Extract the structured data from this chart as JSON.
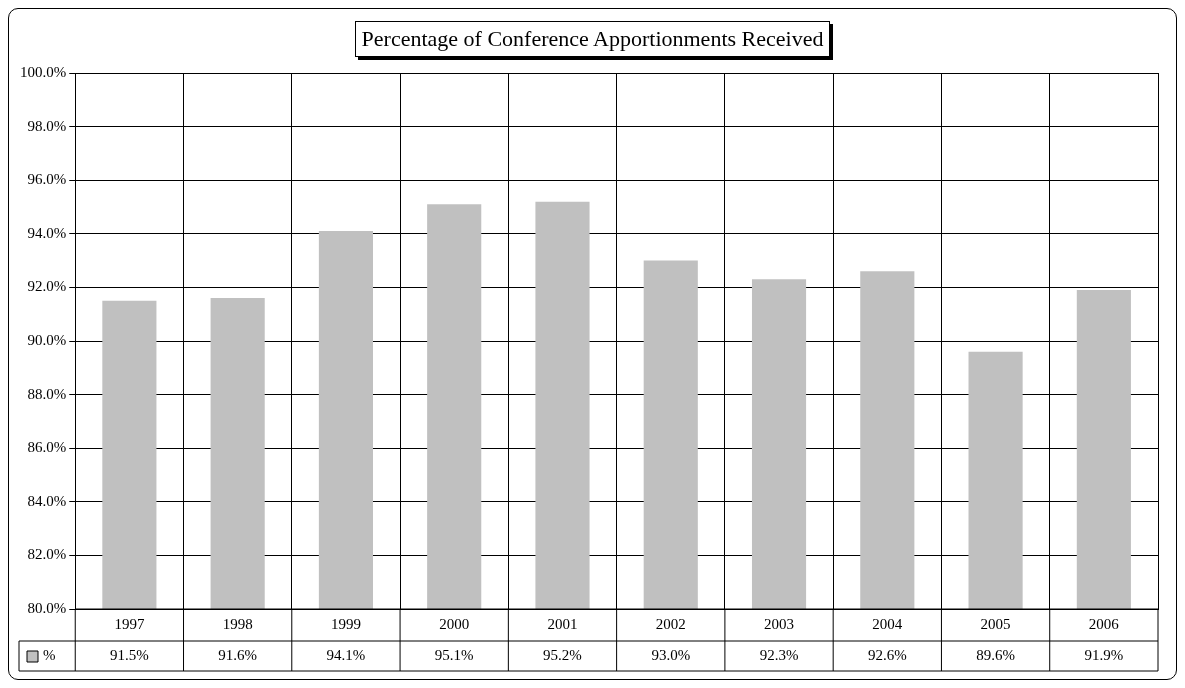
{
  "chart_data": {
    "type": "bar",
    "title": "Percentage of Conference Apportionments Received",
    "categories": [
      "1997",
      "1998",
      "1999",
      "2000",
      "2001",
      "2002",
      "2003",
      "2004",
      "2005",
      "2006"
    ],
    "series": [
      {
        "name": "%",
        "color": "#c0c0c0",
        "values": [
          91.5,
          91.6,
          94.1,
          95.1,
          95.2,
          93.0,
          92.3,
          92.6,
          89.6,
          91.9
        ],
        "value_labels": [
          "91.5%",
          "91.6%",
          "94.1%",
          "95.1%",
          "95.2%",
          "93.0%",
          "92.3%",
          "92.6%",
          "89.6%",
          "91.9%"
        ]
      }
    ],
    "ylim": [
      80,
      100
    ],
    "yticks": [
      {
        "value": 80,
        "label": "80.0%"
      },
      {
        "value": 82,
        "label": "82.0%"
      },
      {
        "value": 84,
        "label": "84.0%"
      },
      {
        "value": 86,
        "label": "86.0%"
      },
      {
        "value": 88,
        "label": "88.0%"
      },
      {
        "value": 90,
        "label": "90.0%"
      },
      {
        "value": 92,
        "label": "92.0%"
      },
      {
        "value": 94,
        "label": "94.0%"
      },
      {
        "value": 96,
        "label": "96.0%"
      },
      {
        "value": 98,
        "label": "98.0%"
      },
      {
        "value": 100,
        "label": "100.0%"
      }
    ],
    "grid": true,
    "legend": "bottom left"
  }
}
